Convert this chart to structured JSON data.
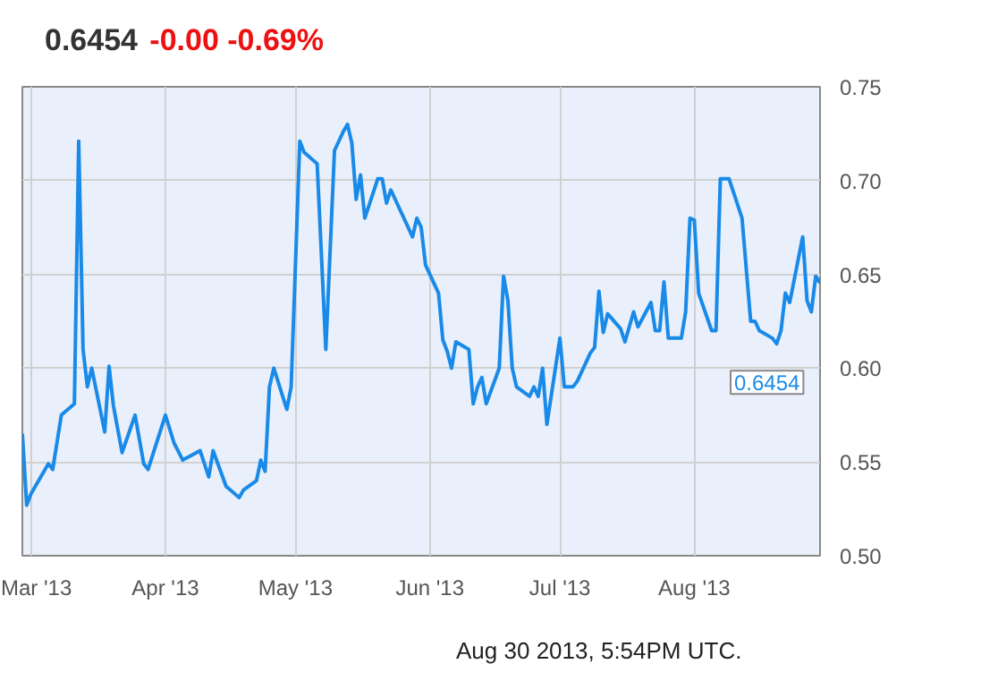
{
  "chart_data": {
    "type": "line",
    "title": "0.6454",
    "subtitle": "-0.00  -0.69%",
    "x": [
      "2013-02-27",
      "2013-02-28",
      "2013-03-01",
      "2013-03-05",
      "2013-03-06",
      "2013-03-08",
      "2013-03-11",
      "2013-03-12",
      "2013-03-13",
      "2013-03-14",
      "2013-03-15",
      "2013-03-18",
      "2013-03-19",
      "2013-03-20",
      "2013-03-22",
      "2013-03-25",
      "2013-03-27",
      "2013-03-28",
      "2013-04-01",
      "2013-04-03",
      "2013-04-05",
      "2013-04-09",
      "2013-04-11",
      "2013-04-12",
      "2013-04-15",
      "2013-04-18",
      "2013-04-19",
      "2013-04-22",
      "2013-04-23",
      "2013-04-24",
      "2013-04-25",
      "2013-04-26",
      "2013-04-29",
      "2013-04-30",
      "2013-05-02",
      "2013-05-03",
      "2013-05-06",
      "2013-05-08",
      "2013-05-10",
      "2013-05-12",
      "2013-05-13",
      "2013-05-14",
      "2013-05-15",
      "2013-05-16",
      "2013-05-17",
      "2013-05-20",
      "2013-05-21",
      "2013-05-22",
      "2013-05-23",
      "2013-05-28",
      "2013-05-29",
      "2013-05-30",
      "2013-05-31",
      "2013-06-03",
      "2013-06-04",
      "2013-06-05",
      "2013-06-06",
      "2013-06-07",
      "2013-06-10",
      "2013-06-11",
      "2013-06-12",
      "2013-06-13",
      "2013-06-14",
      "2013-06-17",
      "2013-06-18",
      "2013-06-19",
      "2013-06-20",
      "2013-06-21",
      "2013-06-24",
      "2013-06-25",
      "2013-06-26",
      "2013-06-27",
      "2013-06-28",
      "2013-07-01",
      "2013-07-02",
      "2013-07-04",
      "2013-07-05",
      "2013-07-08",
      "2013-07-09",
      "2013-07-10",
      "2013-07-11",
      "2013-07-12",
      "2013-07-15",
      "2013-07-16",
      "2013-07-18",
      "2013-07-19",
      "2013-07-22",
      "2013-07-23",
      "2013-07-24",
      "2013-07-25",
      "2013-07-26",
      "2013-07-29",
      "2013-07-30",
      "2013-07-31",
      "2013-08-01",
      "2013-08-02",
      "2013-08-05",
      "2013-08-06",
      "2013-08-07",
      "2013-08-09",
      "2013-08-12",
      "2013-08-14",
      "2013-08-15",
      "2013-08-16",
      "2013-08-19",
      "2013-08-20",
      "2013-08-21",
      "2013-08-22",
      "2013-08-23",
      "2013-08-26",
      "2013-08-27",
      "2013-08-28",
      "2013-08-29",
      "2013-08-30"
    ],
    "series": [
      {
        "color": "#1a8ae8",
        "values": [
          0.565,
          0.527,
          0.533,
          0.549,
          0.546,
          0.575,
          0.581,
          0.721,
          0.61,
          0.59,
          0.6,
          0.566,
          0.601,
          0.58,
          0.555,
          0.575,
          0.549,
          0.546,
          0.575,
          0.56,
          0.551,
          0.556,
          0.542,
          0.556,
          0.537,
          0.531,
          0.535,
          0.54,
          0.551,
          0.545,
          0.59,
          0.6,
          0.578,
          0.59,
          0.721,
          0.715,
          0.709,
          0.61,
          0.716,
          0.726,
          0.73,
          0.72,
          0.69,
          0.703,
          0.68,
          0.701,
          0.701,
          0.688,
          0.695,
          0.67,
          0.68,
          0.675,
          0.655,
          0.64,
          0.615,
          0.609,
          0.6,
          0.614,
          0.61,
          0.581,
          0.59,
          0.595,
          0.581,
          0.6,
          0.649,
          0.636,
          0.6,
          0.59,
          0.585,
          0.59,
          0.585,
          0.6,
          0.57,
          0.616,
          0.59,
          0.59,
          0.593,
          0.608,
          0.611,
          0.641,
          0.619,
          0.629,
          0.621,
          0.614,
          0.63,
          0.622,
          0.635,
          0.62,
          0.62,
          0.646,
          0.616,
          0.616,
          0.63,
          0.68,
          0.679,
          0.64,
          0.62,
          0.62,
          0.701,
          0.701,
          0.68,
          0.625,
          0.625,
          0.62,
          0.616,
          0.613,
          0.62,
          0.64,
          0.635,
          0.67,
          0.636,
          0.63,
          0.649,
          0.6454
        ]
      }
    ],
    "xlim": [
      "2013-02-27",
      "2013-08-30"
    ],
    "xticks": [
      {
        "value": "2013-03-01",
        "label": "Mar '13"
      },
      {
        "value": "2013-04-01",
        "label": "Apr '13"
      },
      {
        "value": "2013-05-01",
        "label": "May '13"
      },
      {
        "value": "2013-06-01",
        "label": "Jun '13"
      },
      {
        "value": "2013-07-01",
        "label": "Jul '13"
      },
      {
        "value": "2013-08-01",
        "label": "Aug '13"
      }
    ],
    "ylim": [
      0.5,
      0.75
    ],
    "yticks": [
      {
        "value": 0.5,
        "label": "0.50"
      },
      {
        "value": 0.55,
        "label": "0.55"
      },
      {
        "value": 0.6,
        "label": "0.60"
      },
      {
        "value": 0.65,
        "label": "0.65"
      },
      {
        "value": 0.7,
        "label": "0.70"
      },
      {
        "value": 0.75,
        "label": "0.75"
      }
    ],
    "grid": true,
    "marker": "none",
    "line_style": "solid",
    "annotations": [
      "0.6454",
      "Aug 30 2013, 5:54PM UTC."
    ]
  }
}
